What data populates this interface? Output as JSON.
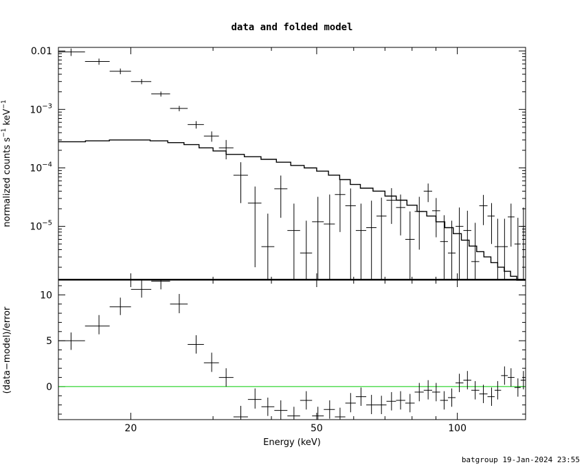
{
  "title": "data and folded model",
  "footer": "batgroup 19-Jan-2024 23:55",
  "colors": {
    "frame": "#000000",
    "data": "#000000",
    "model": "#000000",
    "zero_line": "#00cc00"
  },
  "chart_data": [
    {
      "type": "scatter",
      "panel": "top",
      "ylabel_main": "normalized counts s",
      "ylabel_exp1": "−1",
      "ylabel_mid": " keV",
      "ylabel_exp2": "−1",
      "xscale": "log",
      "yscale": "log",
      "xlim": [
        14,
        140
      ],
      "ylim": [
        1.2e-06,
        0.0115
      ],
      "yticks": [
        {
          "value": 0.01,
          "label": "0.01"
        },
        {
          "value": 0.001,
          "mant": "10",
          "exp": "−3"
        },
        {
          "value": 0.0001,
          "mant": "10",
          "exp": "−4"
        },
        {
          "value": 1e-05,
          "mant": "10",
          "exp": "−5"
        }
      ],
      "series": [
        {
          "points": [
            [
              14.9,
              0.0096,
              0.0096,
              0.0014
            ],
            [
              17.1,
              0.0066,
              0.0066,
              0.0008
            ],
            [
              19.0,
              0.0045,
              0.0045,
              0.0005
            ],
            [
              21.1,
              0.003,
              0.003,
              0.0003
            ],
            [
              23.2,
              0.00184,
              0.00184,
              0.00018
            ],
            [
              25.4,
              0.00104,
              0.00104,
              0.00011
            ],
            [
              27.6,
              0.00055,
              0.00055,
              8e-05
            ],
            [
              29.8,
              0.00035,
              0.00035,
              7e-05
            ],
            [
              32.0,
              0.00022,
              0.00022,
              8e-05
            ],
            [
              34.4,
              7.5e-05,
              7.5e-05,
              5e-05
            ],
            [
              36.9,
              2.5e-05,
              2.5e-05,
              2.3e-05
            ],
            [
              39.3,
              4.5e-06,
              4.5e-06,
              1.2e-05
            ],
            [
              41.9,
              4.4e-05,
              4.4e-05,
              3e-05
            ],
            [
              44.7,
              8.5e-06,
              8.5e-06,
              1.6e-05
            ],
            [
              47.5,
              3.5e-06,
              3.5e-06,
              9e-06
            ],
            [
              50.3,
              1.2e-05,
              1.2e-05,
              2e-05
            ],
            [
              53.3,
              1.1e-05,
              1.1e-05,
              2.4e-05
            ],
            [
              56.1,
              3.5e-05,
              3.5e-05,
              2.7e-05
            ],
            [
              59.1,
              2.25e-05,
              2.25e-05,
              2.2e-05
            ],
            [
              62.2,
              8.5e-06,
              8.5e-06,
              1.6e-05
            ],
            [
              65.5,
              9.5e-06,
              9.5e-06,
              1.8e-05
            ],
            [
              68.8,
              1.5e-05,
              1.5e-05,
              1.6e-05
            ],
            [
              72.3,
              2.8e-05,
              2.8e-05,
              1.7e-05
            ],
            [
              75.6,
              2.1e-05,
              2.1e-05,
              1.4e-05
            ],
            [
              79.2,
              6e-06,
              6e-06,
              1.2e-05
            ],
            [
              82.9,
              1.8e-05,
              1.8e-05,
              1.4e-05
            ],
            [
              86.6,
              4e-05,
              4e-05,
              1.4e-05
            ],
            [
              90.1,
              1.85e-05,
              1.85e-05,
              1.2e-05
            ],
            [
              93.7,
              5.5e-06,
              5.5e-06,
              1e-05
            ],
            [
              97.3,
              3.5e-06,
              3.5e-06,
              9e-06
            ],
            [
              101.0,
              1e-05,
              1e-05,
              1.1e-05
            ],
            [
              105.1,
              8.5e-06,
              8.5e-06,
              1e-05
            ],
            [
              109.2,
              2.5e-06,
              2.5e-06,
              9e-06
            ],
            [
              113.7,
              2.25e-05,
              2.25e-05,
              1.2e-05
            ],
            [
              118.4,
              1.5e-05,
              1.5e-05,
              1e-05
            ],
            [
              122.0,
              4.5e-06,
              4.5e-06,
              9e-06
            ],
            [
              126.2,
              4.5e-06,
              4.5e-06,
              9e-06
            ],
            [
              130.3,
              1.45e-05,
              1.45e-05,
              1e-05
            ],
            [
              134.8,
              5e-06,
              5e-06,
              9e-06
            ],
            [
              138.5,
              1e-05,
              1e-05,
              1.1e-05
            ]
          ]
        },
        {
          "type": "step",
          "points": [
            [
              14,
              0.00028
            ],
            [
              16,
              0.00029
            ],
            [
              18,
              0.0003
            ],
            [
              20,
              0.0003
            ],
            [
              22,
              0.00029
            ],
            [
              24,
              0.00027
            ],
            [
              26,
              0.00025
            ],
            [
              28,
              0.00022
            ],
            [
              30,
              0.000195
            ],
            [
              32,
              0.00017
            ],
            [
              35,
              0.000155
            ],
            [
              38,
              0.00014
            ],
            [
              41,
              0.000125
            ],
            [
              44,
              0.00011
            ],
            [
              47,
              0.0001
            ],
            [
              50,
              8.8e-05
            ],
            [
              53,
              7.5e-05
            ],
            [
              56,
              6.3e-05
            ],
            [
              59,
              5.2e-05
            ],
            [
              62,
              4.5e-05
            ],
            [
              66,
              4e-05
            ],
            [
              70,
              3.3e-05
            ],
            [
              74,
              2.8e-05
            ],
            [
              78,
              2.3e-05
            ],
            [
              82,
              1.8e-05
            ],
            [
              86,
              1.5e-05
            ],
            [
              90,
              1.2e-05
            ],
            [
              94,
              9.5e-06
            ],
            [
              98,
              7.5e-06
            ],
            [
              102,
              5.8e-06
            ],
            [
              106,
              4.6e-06
            ],
            [
              110,
              3.7e-06
            ],
            [
              114,
              3e-06
            ],
            [
              118,
              2.4e-06
            ],
            [
              122,
              2e-06
            ],
            [
              126,
              1.7e-06
            ],
            [
              130,
              1.4e-06
            ],
            [
              134,
              1.2e-06
            ],
            [
              140,
              1.2e-06
            ]
          ]
        }
      ]
    },
    {
      "type": "scatter",
      "panel": "bottom",
      "ylabel": "(data−model)/error",
      "xlabel": "Energy (keV)",
      "xscale": "log",
      "xlim": [
        14,
        140
      ],
      "ylim": [
        -3.6,
        11.6
      ],
      "yticks": [
        0,
        5,
        10
      ],
      "xticks": [
        20,
        50,
        100
      ],
      "zero_line": 0,
      "series": [
        {
          "points": [
            [
              14.9,
              5.0,
              0.9,
              1.0
            ],
            [
              17.1,
              6.6,
              1.2,
              0.9
            ],
            [
              19.0,
              8.7,
              1.0,
              0.9
            ],
            [
              21.1,
              10.6,
              1.2,
              0.9
            ],
            [
              23.2,
              11.5,
              1.1,
              0.9
            ],
            [
              25.4,
              9.0,
              1.1,
              1.0
            ],
            [
              27.6,
              4.6,
              1.0,
              1.0
            ],
            [
              29.8,
              2.6,
              1.1,
              1.0
            ],
            [
              32.0,
              1.0,
              1.0,
              1.0
            ],
            [
              34.4,
              -3.3,
              1.2,
              1.0
            ],
            [
              36.9,
              -1.4,
              1.2,
              1.0
            ],
            [
              39.3,
              -2.2,
              1.0,
              1.0
            ],
            [
              41.9,
              -2.6,
              1.1,
              1.0
            ],
            [
              44.7,
              -3.2,
              1.0,
              1.0
            ],
            [
              47.5,
              -1.5,
              1.0,
              1.0
            ],
            [
              50.3,
              -3.2,
              1.0,
              1.0
            ],
            [
              53.3,
              -2.5,
              1.0,
              1.0
            ],
            [
              56.1,
              -3.3,
              1.0,
              1.0
            ],
            [
              59.1,
              -1.8,
              1.1,
              1.0
            ],
            [
              62.2,
              -1.1,
              1.0,
              1.0
            ],
            [
              65.5,
              -2.0,
              1.1,
              1.0
            ],
            [
              68.8,
              -2.0,
              1.0,
              1.0
            ],
            [
              72.3,
              -1.6,
              1.0,
              1.0
            ],
            [
              75.6,
              -1.5,
              1.0,
              1.0
            ],
            [
              79.2,
              -1.8,
              1.0,
              1.0
            ],
            [
              82.9,
              -0.6,
              1.0,
              1.0
            ],
            [
              86.6,
              -0.4,
              1.1,
              1.0
            ],
            [
              90.1,
              -0.6,
              1.0,
              1.0
            ],
            [
              93.7,
              -1.5,
              1.0,
              1.0
            ],
            [
              97.3,
              -1.2,
              1.0,
              1.0
            ],
            [
              101.0,
              0.4,
              1.0,
              1.0
            ],
            [
              105.1,
              0.7,
              1.0,
              1.0
            ],
            [
              109.2,
              -0.4,
              1.0,
              1.0
            ],
            [
              113.7,
              -0.8,
              1.0,
              1.0
            ],
            [
              118.4,
              -1.1,
              1.0,
              1.0
            ],
            [
              122.0,
              -0.4,
              1.0,
              1.0
            ],
            [
              126.2,
              1.2,
              1.0,
              1.0
            ],
            [
              130.3,
              1.0,
              1.0,
              1.0
            ],
            [
              134.8,
              -0.1,
              1.0,
              1.0
            ],
            [
              138.5,
              0.7,
              1.0,
              1.0
            ]
          ]
        }
      ]
    }
  ]
}
